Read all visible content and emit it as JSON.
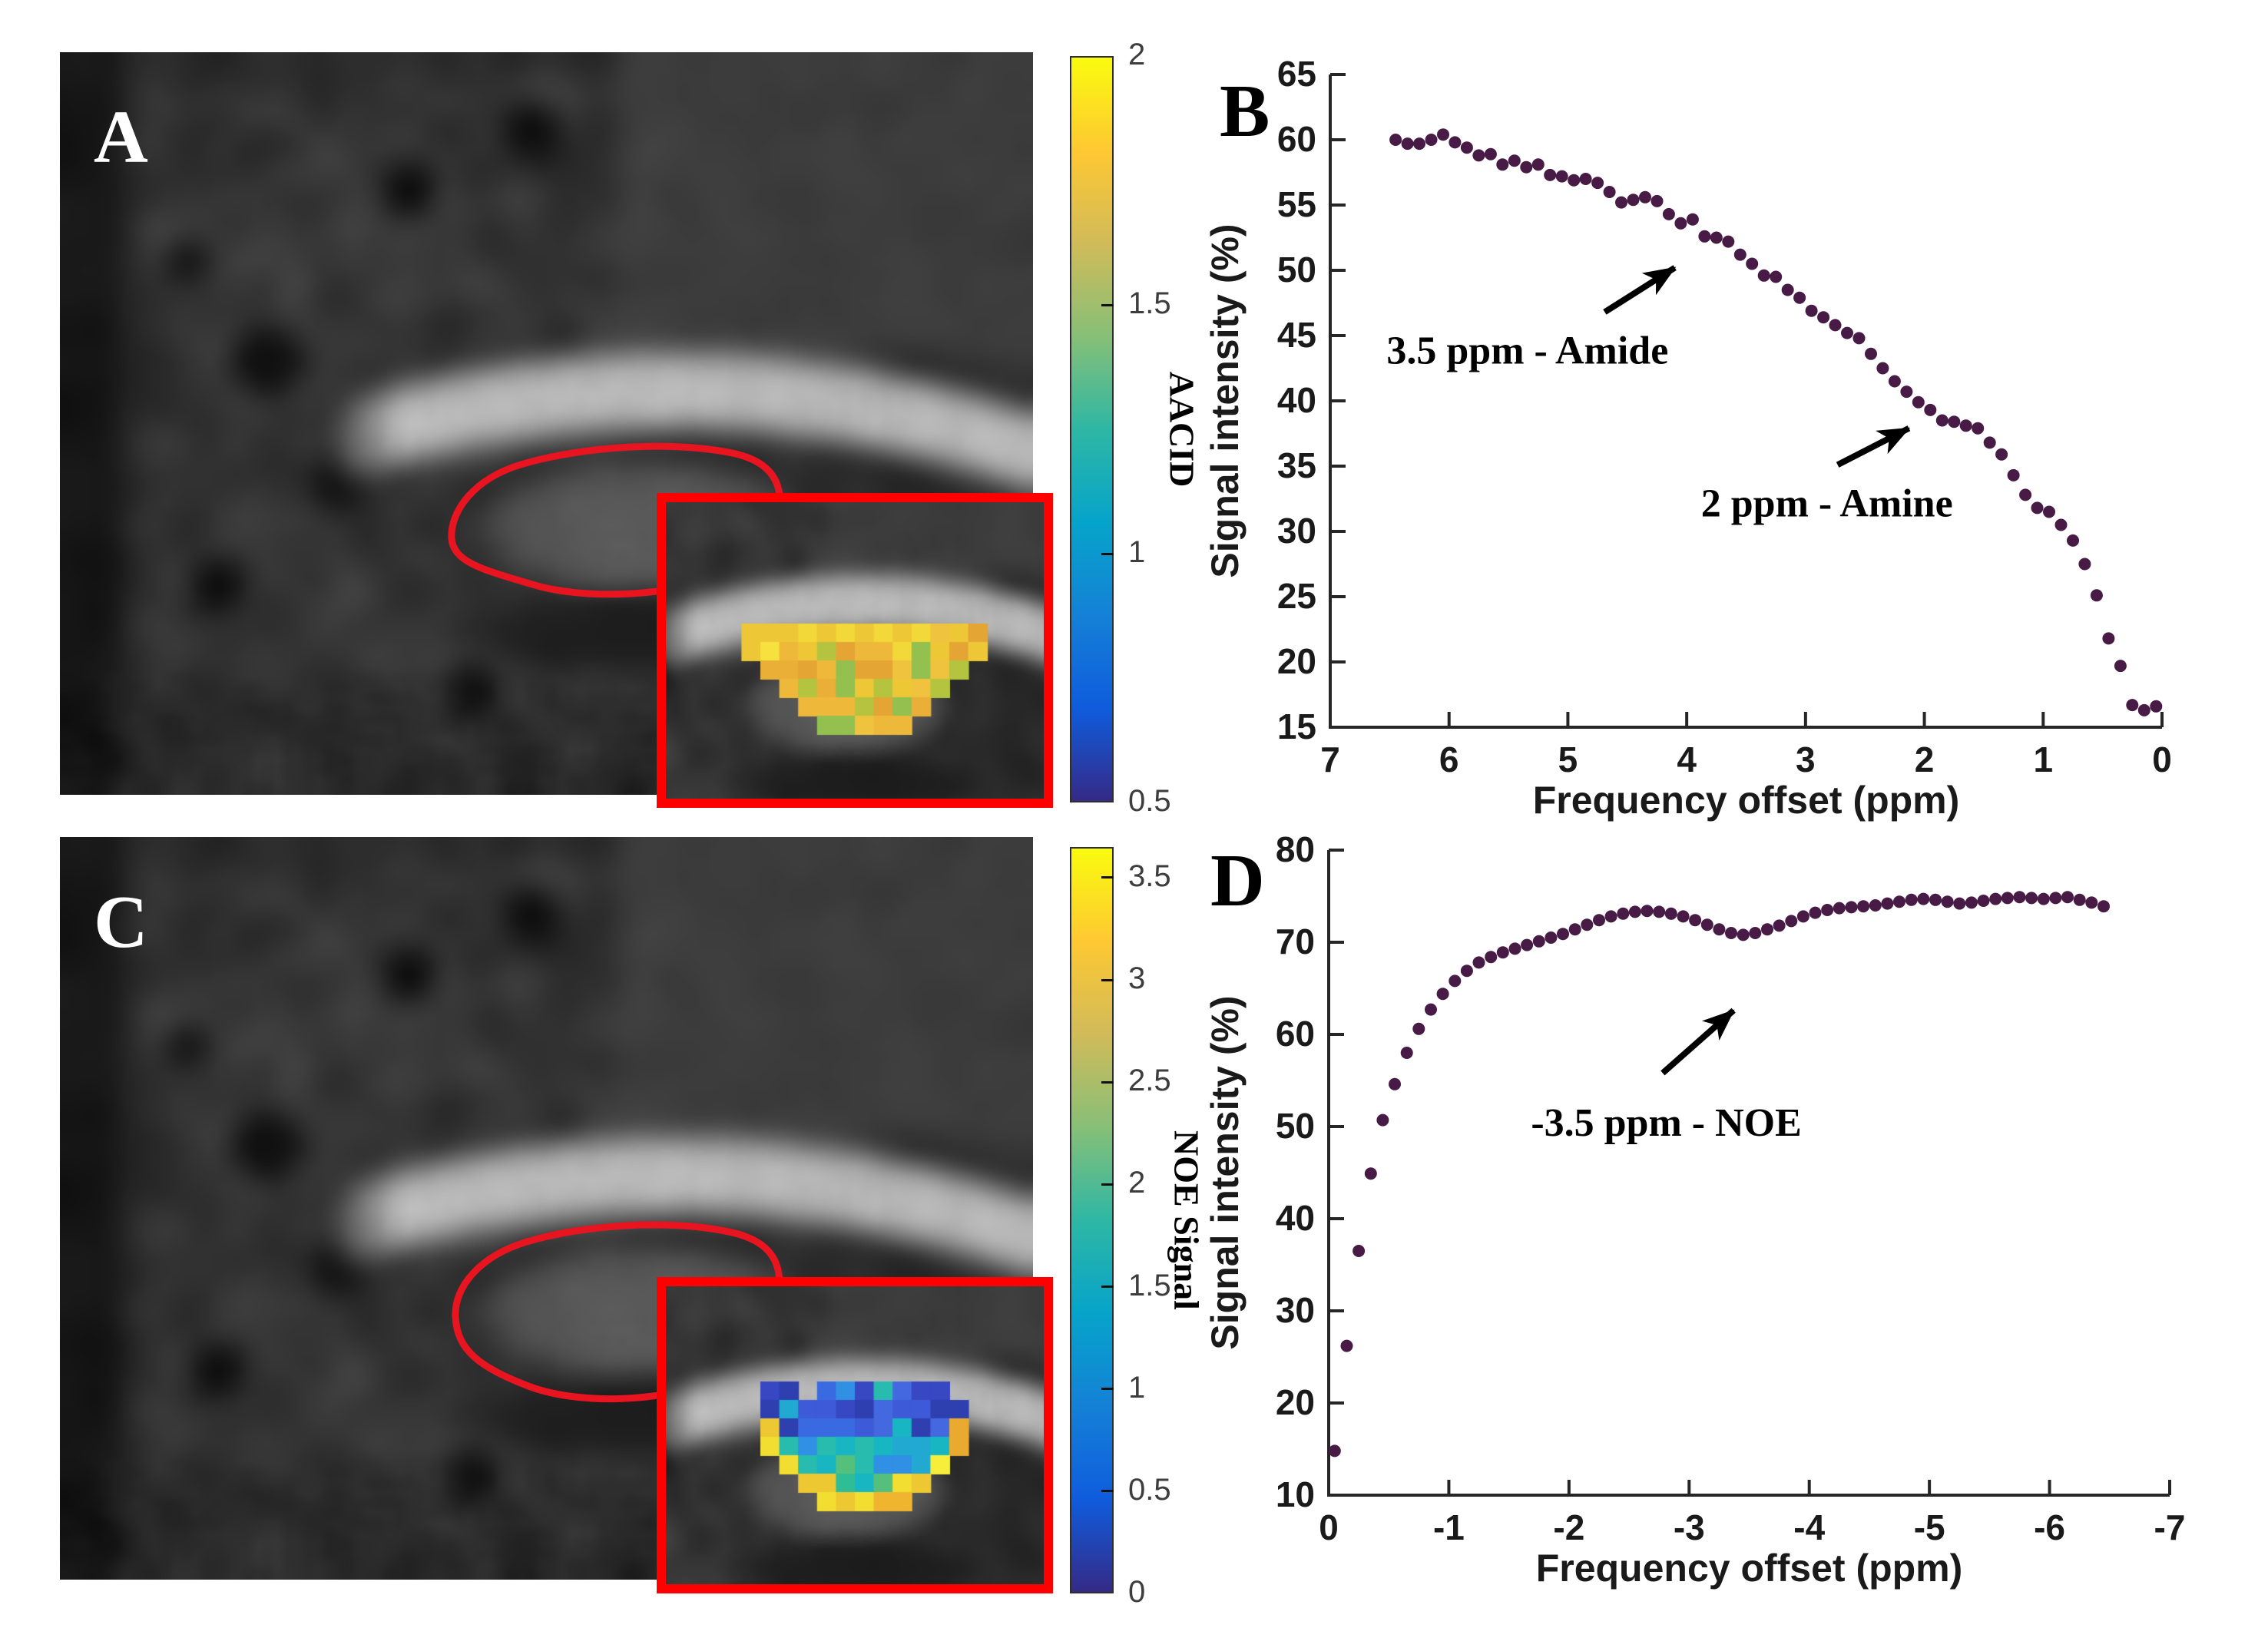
{
  "figure": {
    "panels": [
      {
        "id": "A",
        "label": "A"
      },
      {
        "id": "B",
        "label": "B"
      },
      {
        "id": "C",
        "label": "C"
      },
      {
        "id": "D",
        "label": "D"
      }
    ],
    "colorbars": [
      {
        "id": "aacid",
        "title": "AACID",
        "range": [
          0.5,
          2
        ],
        "tick_labels": [
          "2",
          "1.5",
          "1",
          "0.5"
        ],
        "tick_values": [
          2,
          1.5,
          1,
          0.5
        ],
        "colormap": [
          "#352a87",
          "#0f5cdd",
          "#1481d6",
          "#06a4ca",
          "#2eb7a4",
          "#87bf77",
          "#d1bb59",
          "#fec832",
          "#f9fb0e"
        ]
      },
      {
        "id": "noe",
        "title": "NOE Signal",
        "range": [
          0,
          3.65
        ],
        "tick_labels": [
          "3.5",
          "3",
          "2.5",
          "2",
          "1.5",
          "1",
          "0.5",
          "0"
        ],
        "tick_values": [
          3.5,
          3,
          2.5,
          2,
          1.5,
          1,
          0.5,
          0
        ],
        "colormap": [
          "#352a87",
          "#0f5cdd",
          "#1481d6",
          "#06a4ca",
          "#2eb7a4",
          "#87bf77",
          "#d1bb59",
          "#fec832",
          "#f9fb0e"
        ]
      }
    ],
    "mri": {
      "roi_color": "#e81420",
      "inset_border_color": "#ff0000",
      "aacid_overlay_palette": {
        "yellows": [
          "#f2d838",
          "#f6e13e",
          "#eec736"
        ],
        "oranges": [
          "#e9af37",
          "#eeb93a",
          "#e4a534",
          "#f0c33e"
        ],
        "greens": [
          "#b4c43e",
          "#93c04f"
        ],
        "blue": "#4956c8"
      },
      "noe_overlay_palette": {
        "blues": [
          "#3847c2",
          "#3d5bd8",
          "#2e3fb0",
          "#4468e0",
          "#3a6ae2"
        ],
        "cyans": [
          "#21a9d2",
          "#18b6c2",
          "#27bcae",
          "#2f90e4"
        ],
        "teals": [
          "#2fbd96",
          "#55c07c"
        ],
        "yellows_oranges": [
          "#eec832",
          "#f2de30",
          "#eaa92f",
          "#f6ee3b",
          "#f0b52f"
        ]
      }
    }
  },
  "chart_data": [
    {
      "id": "B",
      "type": "scatter",
      "xlabel": "Frequency offset (ppm)",
      "ylabel": "Signal intensity (%)",
      "xlim": [
        7,
        0
      ],
      "ylim": [
        15,
        65
      ],
      "xticks": [
        7,
        6,
        5,
        4,
        3,
        2,
        1,
        0
      ],
      "yticks": [
        15,
        20,
        25,
        30,
        35,
        40,
        45,
        50,
        55,
        60,
        65
      ],
      "grid": false,
      "marker_color": "#471b46",
      "points": [
        [
          6.45,
          60.0
        ],
        [
          6.35,
          59.7
        ],
        [
          6.25,
          59.7
        ],
        [
          6.15,
          60.0
        ],
        [
          6.05,
          60.4
        ],
        [
          5.95,
          59.8
        ],
        [
          5.85,
          59.4
        ],
        [
          5.75,
          58.8
        ],
        [
          5.65,
          58.9
        ],
        [
          5.55,
          58.1
        ],
        [
          5.45,
          58.4
        ],
        [
          5.35,
          57.9
        ],
        [
          5.25,
          58.1
        ],
        [
          5.15,
          57.3
        ],
        [
          5.05,
          57.2
        ],
        [
          4.95,
          56.9
        ],
        [
          4.85,
          57.0
        ],
        [
          4.75,
          56.7
        ],
        [
          4.65,
          56.0
        ],
        [
          4.55,
          55.2
        ],
        [
          4.45,
          55.4
        ],
        [
          4.35,
          55.6
        ],
        [
          4.25,
          55.3
        ],
        [
          4.15,
          54.3
        ],
        [
          4.05,
          53.6
        ],
        [
          3.95,
          53.9
        ],
        [
          3.85,
          52.6
        ],
        [
          3.75,
          52.5
        ],
        [
          3.65,
          52.2
        ],
        [
          3.55,
          51.2
        ],
        [
          3.45,
          50.5
        ],
        [
          3.35,
          49.6
        ],
        [
          3.25,
          49.5
        ],
        [
          3.15,
          48.5
        ],
        [
          3.05,
          47.9
        ],
        [
          2.95,
          46.9
        ],
        [
          2.85,
          46.4
        ],
        [
          2.75,
          45.8
        ],
        [
          2.65,
          45.2
        ],
        [
          2.55,
          44.8
        ],
        [
          2.45,
          43.6
        ],
        [
          2.35,
          42.5
        ],
        [
          2.25,
          41.5
        ],
        [
          2.15,
          40.7
        ],
        [
          2.05,
          39.9
        ],
        [
          1.95,
          39.3
        ],
        [
          1.85,
          38.5
        ],
        [
          1.75,
          38.4
        ],
        [
          1.65,
          38.1
        ],
        [
          1.55,
          37.9
        ],
        [
          1.45,
          36.8
        ],
        [
          1.35,
          35.9
        ],
        [
          1.25,
          34.3
        ],
        [
          1.15,
          32.8
        ],
        [
          1.05,
          31.8
        ],
        [
          0.95,
          31.5
        ],
        [
          0.85,
          30.5
        ],
        [
          0.75,
          29.3
        ],
        [
          0.65,
          27.5
        ],
        [
          0.55,
          25.1
        ],
        [
          0.45,
          21.8
        ],
        [
          0.35,
          19.7
        ],
        [
          0.25,
          16.7
        ],
        [
          0.15,
          16.3
        ],
        [
          0.05,
          16.6
        ]
      ],
      "annotations": [
        {
          "text": "3.5 ppm - Amide",
          "text_at": [
            5.34,
            43.9
          ],
          "arrow_from": [
            4.69,
            46.8
          ],
          "arrow_to": [
            4.1,
            50.2
          ]
        },
        {
          "text": "2 ppm - Amine",
          "text_at": [
            2.82,
            32.2
          ],
          "arrow_from": [
            2.73,
            35.1
          ],
          "arrow_to": [
            2.13,
            37.9
          ]
        }
      ]
    },
    {
      "id": "D",
      "type": "scatter",
      "xlabel": "Frequency offset (ppm)",
      "ylabel": "Signal intensity (%)",
      "xlim": [
        0,
        -7
      ],
      "ylim": [
        10,
        80
      ],
      "xticks": [
        0,
        -1,
        -2,
        -3,
        -4,
        -5,
        -6,
        -7
      ],
      "yticks": [
        10,
        20,
        30,
        40,
        50,
        60,
        70,
        80
      ],
      "grid": false,
      "marker_color": "#471b46",
      "points": [
        [
          -0.05,
          14.8
        ],
        [
          -0.15,
          26.2
        ],
        [
          -0.25,
          36.5
        ],
        [
          -0.35,
          44.9
        ],
        [
          -0.45,
          50.7
        ],
        [
          -0.55,
          54.6
        ],
        [
          -0.65,
          58.0
        ],
        [
          -0.75,
          60.6
        ],
        [
          -0.85,
          62.7
        ],
        [
          -0.95,
          64.4
        ],
        [
          -1.05,
          65.8
        ],
        [
          -1.15,
          66.9
        ],
        [
          -1.25,
          67.8
        ],
        [
          -1.35,
          68.4
        ],
        [
          -1.45,
          68.9
        ],
        [
          -1.55,
          69.3
        ],
        [
          -1.65,
          69.7
        ],
        [
          -1.75,
          70.1
        ],
        [
          -1.85,
          70.5
        ],
        [
          -1.95,
          70.9
        ],
        [
          -2.05,
          71.4
        ],
        [
          -2.15,
          71.9
        ],
        [
          -2.25,
          72.4
        ],
        [
          -2.35,
          72.8
        ],
        [
          -2.45,
          73.1
        ],
        [
          -2.55,
          73.3
        ],
        [
          -2.65,
          73.4
        ],
        [
          -2.75,
          73.3
        ],
        [
          -2.85,
          73.1
        ],
        [
          -2.95,
          72.8
        ],
        [
          -3.05,
          72.4
        ],
        [
          -3.15,
          71.9
        ],
        [
          -3.25,
          71.4
        ],
        [
          -3.35,
          71.0
        ],
        [
          -3.45,
          70.8
        ],
        [
          -3.55,
          71.0
        ],
        [
          -3.65,
          71.4
        ],
        [
          -3.75,
          71.8
        ],
        [
          -3.85,
          72.3
        ],
        [
          -3.95,
          72.8
        ],
        [
          -4.05,
          73.2
        ],
        [
          -4.15,
          73.5
        ],
        [
          -4.25,
          73.7
        ],
        [
          -4.35,
          73.8
        ],
        [
          -4.45,
          73.9
        ],
        [
          -4.55,
          74.0
        ],
        [
          -4.65,
          74.2
        ],
        [
          -4.75,
          74.4
        ],
        [
          -4.85,
          74.6
        ],
        [
          -4.95,
          74.7
        ],
        [
          -5.05,
          74.6
        ],
        [
          -5.15,
          74.4
        ],
        [
          -5.25,
          74.2
        ],
        [
          -5.35,
          74.3
        ],
        [
          -5.45,
          74.5
        ],
        [
          -5.55,
          74.7
        ],
        [
          -5.65,
          74.8
        ],
        [
          -5.75,
          74.9
        ],
        [
          -5.85,
          74.8
        ],
        [
          -5.95,
          74.7
        ],
        [
          -6.05,
          74.8
        ],
        [
          -6.15,
          74.9
        ],
        [
          -6.25,
          74.6
        ],
        [
          -6.35,
          74.3
        ],
        [
          -6.45,
          73.9
        ]
      ],
      "annotations": [
        {
          "text": "-3.5 ppm - NOE",
          "text_at": [
            -2.81,
            50.5
          ],
          "arrow_from": [
            -2.78,
            55.8
          ],
          "arrow_to": [
            -3.37,
            62.6
          ]
        }
      ]
    }
  ]
}
